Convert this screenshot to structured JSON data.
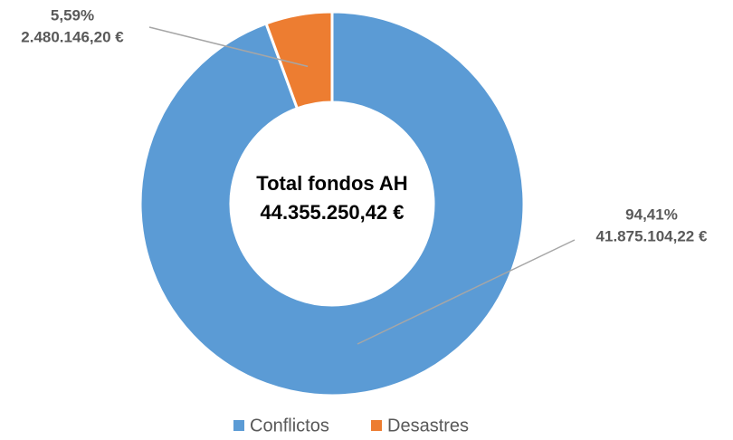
{
  "chart_data": {
    "type": "donut",
    "center_text": [
      "Total fondos AH",
      "44.355.250,42 €"
    ],
    "categories": [
      "Conflictos",
      "Desastres"
    ],
    "values": [
      94.41,
      5.59
    ],
    "value_labels": [
      "94,41%",
      "5,59%"
    ],
    "amount_labels": [
      "41.875.104,22 €",
      "2.480.146,20 €"
    ],
    "colors": [
      "#5b9bd5",
      "#ed7d31"
    ],
    "legend": "bottom"
  }
}
